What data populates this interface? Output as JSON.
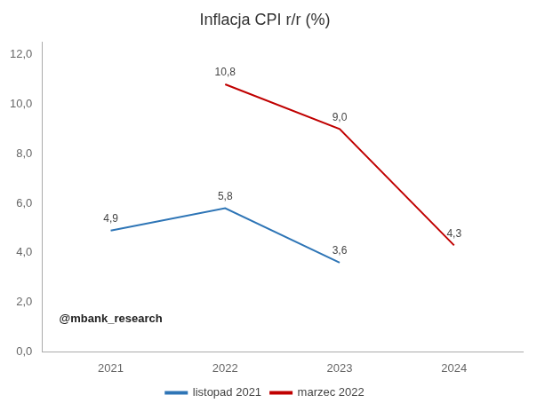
{
  "chart_data": {
    "type": "line",
    "title": "Inflacja CPI r/r (%)",
    "x": [
      2021,
      2022,
      2023,
      2024
    ],
    "series": [
      {
        "name": "listopad 2021",
        "color": "#2E75B6",
        "values": [
          4.9,
          5.8,
          3.6,
          null
        ],
        "value_labels": [
          "4,9",
          "5,8",
          "3,6",
          null
        ]
      },
      {
        "name": "marzec 2022",
        "color": "#C00000",
        "values": [
          null,
          10.8,
          9.0,
          4.3
        ],
        "value_labels": [
          null,
          "10,8",
          "9,0",
          "4,3"
        ]
      }
    ],
    "xlim": [
      2020.4,
      2024.6
    ],
    "xticks": [
      2021,
      2022,
      2023,
      2024
    ],
    "ylim": [
      0,
      12.5
    ],
    "yticks": [
      {
        "value": 0,
        "label": "0,0"
      },
      {
        "value": 2,
        "label": "2,0"
      },
      {
        "value": 4,
        "label": "4,0"
      },
      {
        "value": 6,
        "label": "6,0"
      },
      {
        "value": 8,
        "label": "8,0"
      },
      {
        "value": 10,
        "label": "10,0"
      },
      {
        "value": 12,
        "label": "12,0"
      }
    ],
    "grid": false,
    "legend": "bottom",
    "data_labels": true,
    "marker": "none",
    "annotations": [
      {
        "text": "@mbank_research",
        "x": 2020.55,
        "y": 1.1
      }
    ]
  }
}
